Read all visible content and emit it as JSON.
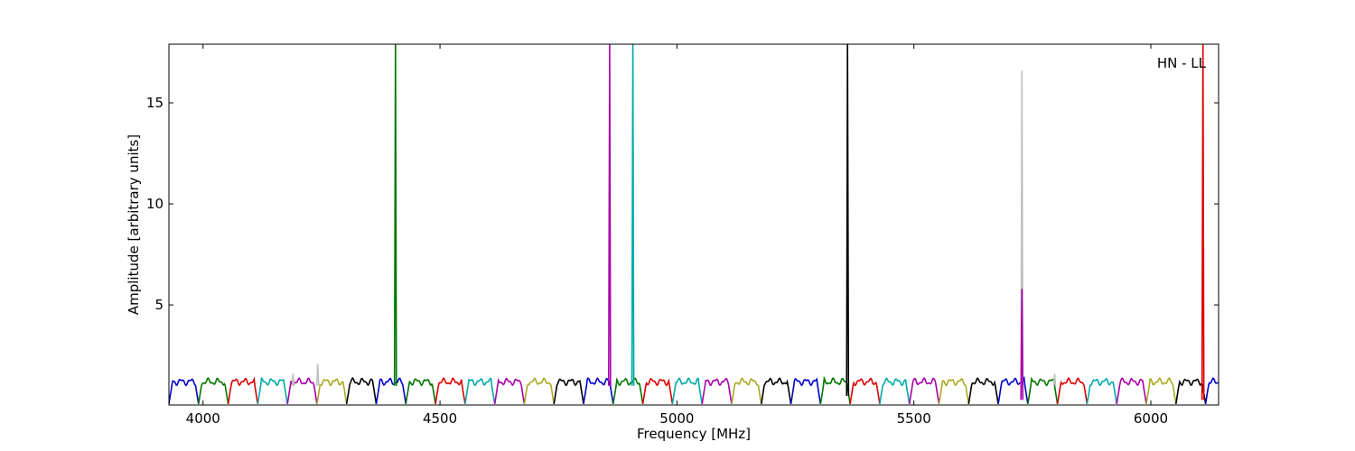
{
  "chart_data": {
    "type": "line",
    "title": "",
    "annotation": "HN - LL",
    "xlabel": "Frequency [MHz]",
    "ylabel": "Amplitude [arbitrary units]",
    "xlim": [
      3928,
      6143
    ],
    "ylim": [
      0.05,
      17.9
    ],
    "xticks": [
      4000,
      4500,
      5000,
      5500,
      6000
    ],
    "yticks": [
      5,
      10,
      15
    ],
    "grid": false,
    "legend": "none",
    "colors": [
      "#0000cc",
      "#007700",
      "#dd0000",
      "#00aaaa",
      "#aa00aa",
      "#aaaa22",
      "#000000"
    ],
    "background_color": "#c0c0c0",
    "bands": {
      "start": 3928,
      "width": 62.5,
      "color_cycle": [
        "#0000cc",
        "#007700",
        "#dd0000",
        "#00aaaa",
        "#aa00aa",
        "#aaaa22",
        "#000000"
      ],
      "baseline_low": 0.1,
      "baseline_high": 1.2
    },
    "series": [
      {
        "color": "#007700",
        "x": [
          4404,
          4406,
          4408
        ],
        "y": [
          1.0,
          17.9,
          1.0
        ]
      },
      {
        "color": "#aa00aa",
        "x": [
          4856,
          4858,
          4860
        ],
        "y": [
          1.0,
          17.9,
          1.0
        ]
      },
      {
        "color": "#00aaaa",
        "x": [
          4905,
          4907,
          4909
        ],
        "y": [
          1.0,
          17.9,
          1.0
        ]
      },
      {
        "color": "#000000",
        "x": [
          5358,
          5360,
          5362
        ],
        "y": [
          0.5,
          17.9,
          0.5
        ]
      },
      {
        "color": "#c0c0c0",
        "x": [
          5726,
          5728,
          5730
        ],
        "y": [
          1.0,
          16.6,
          1.0
        ]
      },
      {
        "color": "#aa00aa",
        "x": [
          5726,
          5728,
          5730
        ],
        "y": [
          0.3,
          5.8,
          0.3
        ]
      },
      {
        "color": "#dd0000",
        "x": [
          6108,
          6110,
          6112
        ],
        "y": [
          0.3,
          17.9,
          0.3
        ]
      },
      {
        "color": "#c0c0c0",
        "x": [
          4188,
          4190,
          4192
        ],
        "y": [
          1.0,
          1.6,
          1.0
        ]
      },
      {
        "color": "#c0c0c0",
        "x": [
          4240,
          4242,
          4244
        ],
        "y": [
          1.0,
          2.1,
          1.0
        ]
      },
      {
        "color": "#c0c0c0",
        "x": [
          5795,
          5797,
          5799
        ],
        "y": [
          1.0,
          1.6,
          1.0
        ]
      }
    ]
  }
}
